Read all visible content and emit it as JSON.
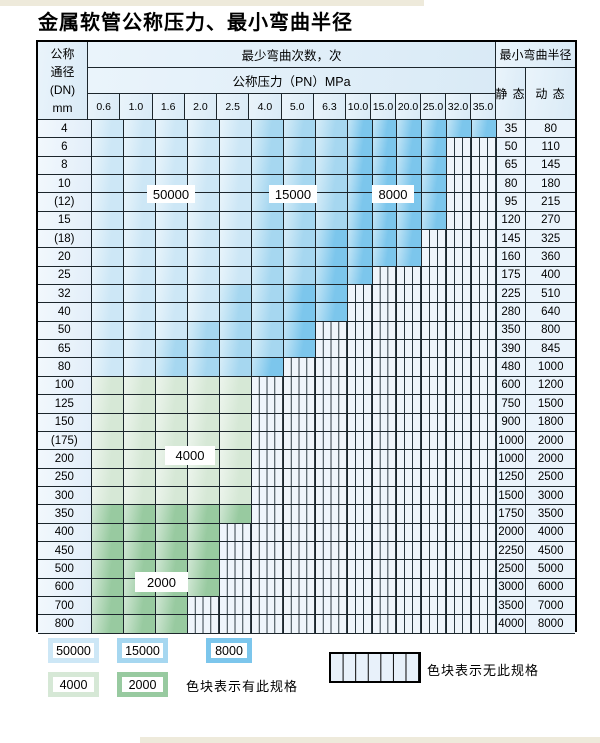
{
  "title": "金属软管公称压力、最小弯曲半径",
  "header": {
    "dn_lines": [
      "公称",
      "通径",
      "(DN)",
      "mm"
    ],
    "cycles": "最少弯曲次数，次",
    "pressure": "公称压力（PN）MPa",
    "radius": "最小弯曲半径",
    "static": "静 态",
    "dynamic": "动 态"
  },
  "columns": [
    "0.6",
    "1.0",
    "1.6",
    "2.0",
    "2.5",
    "4.0",
    "5.0",
    "6.3",
    "10.0",
    "15.0",
    "20.0",
    "25.0",
    "32.0",
    "35.0"
  ],
  "colors": {
    "50000": "#cde7f6",
    "15000": "#a6d7f0",
    "8000": "#7cc6ec",
    "4000": "#d6e8d6",
    "2000": "#98caa0",
    "none_fill": "#eff5fb",
    "grid": "#1c262c"
  },
  "rows": [
    {
      "dn": "4",
      "bands": [
        [
          "50000",
          5
        ],
        [
          "15000",
          3
        ],
        [
          "8000",
          6
        ]
      ],
      "static": "35",
      "dynamic": "80"
    },
    {
      "dn": "6",
      "bands": [
        [
          "50000",
          5
        ],
        [
          "15000",
          3
        ],
        [
          "8000",
          4
        ],
        [
          "none",
          2
        ]
      ],
      "static": "50",
      "dynamic": "110"
    },
    {
      "dn": "8",
      "bands": [
        [
          "50000",
          5
        ],
        [
          "15000",
          3
        ],
        [
          "8000",
          4
        ],
        [
          "none",
          2
        ]
      ],
      "static": "65",
      "dynamic": "145"
    },
    {
      "dn": "10",
      "bands": [
        [
          "50000",
          5
        ],
        [
          "15000",
          3
        ],
        [
          "8000",
          4
        ],
        [
          "none",
          2
        ]
      ],
      "static": "80",
      "dynamic": "180"
    },
    {
      "dn": "(12)",
      "bands": [
        [
          "50000",
          5
        ],
        [
          "15000",
          3
        ],
        [
          "8000",
          4
        ],
        [
          "none",
          2
        ]
      ],
      "static": "95",
      "dynamic": "215"
    },
    {
      "dn": "15",
      "bands": [
        [
          "50000",
          5
        ],
        [
          "15000",
          3
        ],
        [
          "8000",
          4
        ],
        [
          "none",
          2
        ]
      ],
      "static": "120",
      "dynamic": "270"
    },
    {
      "dn": "(18)",
      "bands": [
        [
          "50000",
          5
        ],
        [
          "15000",
          2
        ],
        [
          "8000",
          4
        ],
        [
          "none",
          3
        ]
      ],
      "static": "145",
      "dynamic": "325"
    },
    {
      "dn": "20",
      "bands": [
        [
          "50000",
          5
        ],
        [
          "15000",
          2
        ],
        [
          "8000",
          4
        ],
        [
          "none",
          3
        ]
      ],
      "static": "160",
      "dynamic": "360"
    },
    {
      "dn": "25",
      "bands": [
        [
          "50000",
          5
        ],
        [
          "15000",
          2
        ],
        [
          "8000",
          2
        ],
        [
          "none",
          5
        ]
      ],
      "static": "175",
      "dynamic": "400"
    },
    {
      "dn": "32",
      "bands": [
        [
          "50000",
          4
        ],
        [
          "15000",
          2
        ],
        [
          "8000",
          2
        ],
        [
          "none",
          6
        ]
      ],
      "static": "225",
      "dynamic": "510"
    },
    {
      "dn": "40",
      "bands": [
        [
          "50000",
          4
        ],
        [
          "15000",
          2
        ],
        [
          "8000",
          2
        ],
        [
          "none",
          6
        ]
      ],
      "static": "280",
      "dynamic": "640"
    },
    {
      "dn": "50",
      "bands": [
        [
          "50000",
          3
        ],
        [
          "15000",
          3
        ],
        [
          "8000",
          1
        ],
        [
          "none",
          7
        ]
      ],
      "static": "350",
      "dynamic": "800"
    },
    {
      "dn": "65",
      "bands": [
        [
          "50000",
          2
        ],
        [
          "15000",
          4
        ],
        [
          "8000",
          1
        ],
        [
          "none",
          7
        ]
      ],
      "static": "390",
      "dynamic": "845"
    },
    {
      "dn": "80",
      "bands": [
        [
          "50000",
          2
        ],
        [
          "15000",
          3
        ],
        [
          "8000",
          1
        ],
        [
          "none",
          8
        ]
      ],
      "static": "480",
      "dynamic": "1000"
    },
    {
      "dn": "100",
      "bands": [
        [
          "4000",
          5
        ],
        [
          "none",
          9
        ]
      ],
      "static": "600",
      "dynamic": "1200"
    },
    {
      "dn": "125",
      "bands": [
        [
          "4000",
          5
        ],
        [
          "none",
          9
        ]
      ],
      "static": "750",
      "dynamic": "1500"
    },
    {
      "dn": "150",
      "bands": [
        [
          "4000",
          5
        ],
        [
          "none",
          9
        ]
      ],
      "static": "900",
      "dynamic": "1800"
    },
    {
      "dn": "(175)",
      "bands": [
        [
          "4000",
          5
        ],
        [
          "none",
          9
        ]
      ],
      "static": "1000",
      "dynamic": "2000"
    },
    {
      "dn": "200",
      "bands": [
        [
          "4000",
          5
        ],
        [
          "none",
          9
        ]
      ],
      "static": "1000",
      "dynamic": "2000"
    },
    {
      "dn": "250",
      "bands": [
        [
          "4000",
          5
        ],
        [
          "none",
          9
        ]
      ],
      "static": "1250",
      "dynamic": "2500"
    },
    {
      "dn": "300",
      "bands": [
        [
          "4000",
          5
        ],
        [
          "none",
          9
        ]
      ],
      "static": "1500",
      "dynamic": "3000"
    },
    {
      "dn": "350",
      "bands": [
        [
          "2000",
          5
        ],
        [
          "none",
          9
        ]
      ],
      "static": "1750",
      "dynamic": "3500"
    },
    {
      "dn": "400",
      "bands": [
        [
          "2000",
          4
        ],
        [
          "none",
          10
        ]
      ],
      "static": "2000",
      "dynamic": "4000"
    },
    {
      "dn": "450",
      "bands": [
        [
          "2000",
          4
        ],
        [
          "none",
          10
        ]
      ],
      "static": "2250",
      "dynamic": "4500"
    },
    {
      "dn": "500",
      "bands": [
        [
          "2000",
          4
        ],
        [
          "none",
          10
        ]
      ],
      "static": "2500",
      "dynamic": "5000"
    },
    {
      "dn": "600",
      "bands": [
        [
          "2000",
          4
        ],
        [
          "none",
          10
        ]
      ],
      "static": "3000",
      "dynamic": "6000"
    },
    {
      "dn": "700",
      "bands": [
        [
          "2000",
          3
        ],
        [
          "none",
          11
        ]
      ],
      "static": "3500",
      "dynamic": "7000"
    },
    {
      "dn": "800",
      "bands": [
        [
          "2000",
          3
        ],
        [
          "none",
          11
        ]
      ],
      "static": "4000",
      "dynamic": "8000"
    }
  ],
  "inline_labels": [
    "50000",
    "15000",
    "8000",
    "4000",
    "2000"
  ],
  "legend": {
    "chips": [
      "50000",
      "15000",
      "8000",
      "4000",
      "2000"
    ],
    "have_text": "色块表示有此规格",
    "none_text": "色块表示无此规格"
  }
}
